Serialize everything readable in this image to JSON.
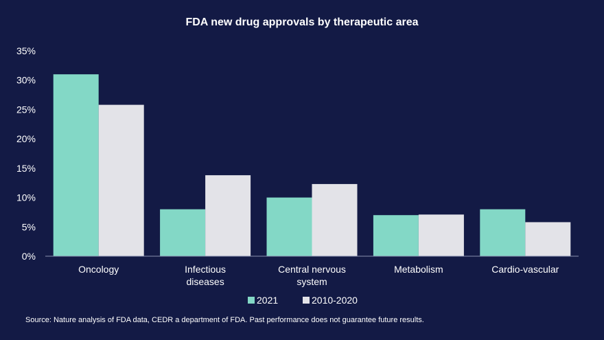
{
  "chart_data": {
    "type": "bar",
    "title": "FDA new drug approvals by therapeutic area",
    "categories": [
      [
        "Oncology"
      ],
      [
        "Infectious",
        "diseases"
      ],
      [
        "Central nervous",
        "system"
      ],
      [
        "Metabolism"
      ],
      [
        "Cardio-vascular"
      ]
    ],
    "series": [
      {
        "name": "2021",
        "values": [
          31,
          8,
          10,
          7,
          8
        ],
        "color": "#83d8c6"
      },
      {
        "name": "2010-2020",
        "values": [
          25.8,
          13.8,
          12.3,
          7.1,
          5.8
        ],
        "color": "#e3e3e8"
      }
    ],
    "ylim": [
      0,
      35
    ],
    "yticks": [
      0,
      5,
      10,
      15,
      20,
      25,
      30,
      35
    ],
    "ytick_labels": [
      "0%",
      "5%",
      "10%",
      "15%",
      "20%",
      "25%",
      "30%",
      "35%"
    ],
    "legend_position": "bottom-center",
    "xlabel": "",
    "ylabel": ""
  },
  "source_note": "Source: Nature analysis of FDA data, CEDR a department of FDA. Past performance does not guarantee future results.",
  "colors": {
    "background": "#131a45",
    "axis": "#8a90b0"
  }
}
